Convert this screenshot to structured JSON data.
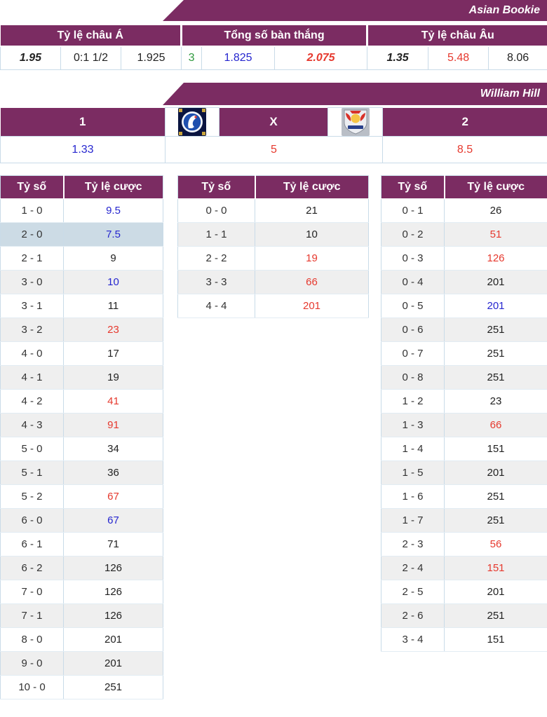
{
  "colors": {
    "accent": "#7b2c62",
    "odds_blue": "#2626cf",
    "odds_red": "#e6392e",
    "value_green": "#2f9a3e",
    "text": "#222222",
    "highlight_row": "#ccdbe5",
    "stripe_row": "#efefef",
    "border": "#c9dbe8"
  },
  "banners": {
    "asian": "Asian Bookie",
    "william": "William Hill"
  },
  "top_table": {
    "headers": [
      "Tỷ lệ châu Á",
      "Tổng số bàn thắng",
      "Tỷ lệ châu Âu"
    ],
    "cells": [
      {
        "text": "1.95",
        "color": "black",
        "em": "bi"
      },
      {
        "text": "0:1 1/2",
        "color": "black"
      },
      {
        "text": "1.925",
        "color": "black"
      },
      {
        "text": "3",
        "color": "green"
      },
      {
        "text": "1.825",
        "color": "blue"
      },
      {
        "text": "2.075",
        "color": "red",
        "em": "bi"
      },
      {
        "text": "1.35",
        "color": "black",
        "em": "bi"
      },
      {
        "text": "5.48",
        "color": "red"
      },
      {
        "text": "8.06",
        "color": "black"
      }
    ]
  },
  "match_odds": {
    "home_label": "1",
    "draw_label": "X",
    "away_label": "2",
    "home_logo": "chelsea-crest",
    "away_logo": "rb-salzburg-crest",
    "home_odds": {
      "text": "1.33",
      "color": "blue"
    },
    "draw_odds": {
      "text": "5",
      "color": "red"
    },
    "away_odds": {
      "text": "8.5",
      "color": "red"
    }
  },
  "score_tables": [
    {
      "headers": [
        "Tỷ số",
        "Tỷ lệ cược"
      ],
      "rows": [
        {
          "score": "1 - 0",
          "odds": "9.5",
          "color": "blue"
        },
        {
          "score": "2 - 0",
          "odds": "7.5",
          "color": "blue",
          "highlight": true
        },
        {
          "score": "2 - 1",
          "odds": "9",
          "color": "black"
        },
        {
          "score": "3 - 0",
          "odds": "10",
          "color": "blue"
        },
        {
          "score": "3 - 1",
          "odds": "11",
          "color": "black"
        },
        {
          "score": "3 - 2",
          "odds": "23",
          "color": "red"
        },
        {
          "score": "4 - 0",
          "odds": "17",
          "color": "black"
        },
        {
          "score": "4 - 1",
          "odds": "19",
          "color": "black"
        },
        {
          "score": "4 - 2",
          "odds": "41",
          "color": "red"
        },
        {
          "score": "4 - 3",
          "odds": "91",
          "color": "red"
        },
        {
          "score": "5 - 0",
          "odds": "34",
          "color": "black"
        },
        {
          "score": "5 - 1",
          "odds": "36",
          "color": "black"
        },
        {
          "score": "5 - 2",
          "odds": "67",
          "color": "red"
        },
        {
          "score": "6 - 0",
          "odds": "67",
          "color": "blue"
        },
        {
          "score": "6 - 1",
          "odds": "71",
          "color": "black"
        },
        {
          "score": "6 - 2",
          "odds": "126",
          "color": "black"
        },
        {
          "score": "7 - 0",
          "odds": "126",
          "color": "black"
        },
        {
          "score": "7 - 1",
          "odds": "126",
          "color": "black"
        },
        {
          "score": "8 - 0",
          "odds": "201",
          "color": "black"
        },
        {
          "score": "9 - 0",
          "odds": "201",
          "color": "black"
        },
        {
          "score": "10 - 0",
          "odds": "251",
          "color": "black"
        }
      ]
    },
    {
      "headers": [
        "Tỷ số",
        "Tỷ lệ cược"
      ],
      "rows": [
        {
          "score": "0 - 0",
          "odds": "21",
          "color": "black"
        },
        {
          "score": "1 - 1",
          "odds": "10",
          "color": "black"
        },
        {
          "score": "2 - 2",
          "odds": "19",
          "color": "red"
        },
        {
          "score": "3 - 3",
          "odds": "66",
          "color": "red"
        },
        {
          "score": "4 - 4",
          "odds": "201",
          "color": "red"
        }
      ]
    },
    {
      "headers": [
        "Tỷ số",
        "Tỷ lệ cược"
      ],
      "rows": [
        {
          "score": "0 - 1",
          "odds": "26",
          "color": "black"
        },
        {
          "score": "0 - 2",
          "odds": "51",
          "color": "red"
        },
        {
          "score": "0 - 3",
          "odds": "126",
          "color": "red"
        },
        {
          "score": "0 - 4",
          "odds": "201",
          "color": "black"
        },
        {
          "score": "0 - 5",
          "odds": "201",
          "color": "blue"
        },
        {
          "score": "0 - 6",
          "odds": "251",
          "color": "black"
        },
        {
          "score": "0 - 7",
          "odds": "251",
          "color": "black"
        },
        {
          "score": "0 - 8",
          "odds": "251",
          "color": "black"
        },
        {
          "score": "1 - 2",
          "odds": "23",
          "color": "black"
        },
        {
          "score": "1 - 3",
          "odds": "66",
          "color": "red"
        },
        {
          "score": "1 - 4",
          "odds": "151",
          "color": "black"
        },
        {
          "score": "1 - 5",
          "odds": "201",
          "color": "black"
        },
        {
          "score": "1 - 6",
          "odds": "251",
          "color": "black"
        },
        {
          "score": "1 - 7",
          "odds": "251",
          "color": "black"
        },
        {
          "score": "2 - 3",
          "odds": "56",
          "color": "red"
        },
        {
          "score": "2 - 4",
          "odds": "151",
          "color": "red"
        },
        {
          "score": "2 - 5",
          "odds": "201",
          "color": "black"
        },
        {
          "score": "2 - 6",
          "odds": "251",
          "color": "black"
        },
        {
          "score": "3 - 4",
          "odds": "151",
          "color": "black"
        }
      ]
    }
  ]
}
